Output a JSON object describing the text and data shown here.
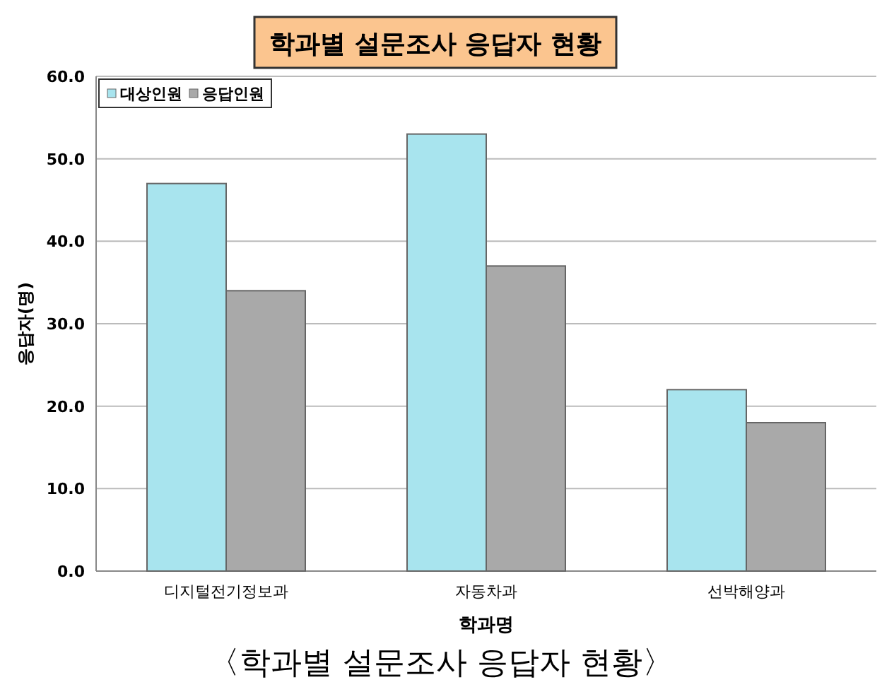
{
  "chart_data": {
    "type": "bar",
    "title": "학과별 설문조사 응답자 현황",
    "xlabel": "학과명",
    "ylabel": "응답자(명)",
    "annotations": [
      "〈학과별 설문조사 응답자 현황〉"
    ],
    "categories": [
      "디지털전기정보과",
      "자동차과",
      "선박해양과"
    ],
    "series": [
      {
        "name": "대상인원",
        "color": "#a8e4ee",
        "values": [
          47,
          53,
          22
        ]
      },
      {
        "name": "응답인원",
        "color": "#a9a9a9",
        "values": [
          34,
          37,
          18
        ]
      }
    ],
    "ylim": [
      0,
      60
    ],
    "yticks": [
      {
        "value": 0,
        "label": "0.0"
      },
      {
        "value": 10,
        "label": "10.0"
      },
      {
        "value": 20,
        "label": "20.0"
      },
      {
        "value": 30,
        "label": "30.0"
      },
      {
        "value": 40,
        "label": "40.0"
      },
      {
        "value": 50,
        "label": "50.0"
      },
      {
        "value": 60,
        "label": "60.0"
      }
    ],
    "grid": "y",
    "legend": "top left"
  }
}
